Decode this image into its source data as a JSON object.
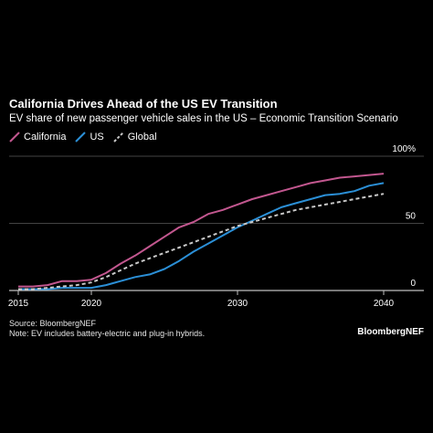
{
  "title": "California Drives Ahead of the US EV Transition",
  "subtitle": "EV share of new passenger vehicle sales in the US – Economic Transition Scenario",
  "colors": {
    "background": "#000000",
    "california": "#c2578f",
    "us": "#2b8fd6",
    "global": "#c8c8c8",
    "grid": "#5a5a5a"
  },
  "footer": {
    "source": "Source: BloombergNEF",
    "note": "Note: EV includes battery-electric and plug-in hybrids.",
    "brand": "BloombergNEF"
  },
  "chart_data": {
    "type": "line",
    "title": "California Drives Ahead of the US EV Transition",
    "subtitle": "EV share of new passenger vehicle sales in the US – Economic Transition Scenario",
    "xlabel": "",
    "ylabel": "",
    "xlim": [
      2015,
      2040
    ],
    "ylim": [
      0,
      100
    ],
    "x_ticks": [
      "2015",
      "2020",
      "2030",
      "2040"
    ],
    "y_ticks": [
      "0",
      "50",
      "100%"
    ],
    "y_tick_values": [
      0,
      50,
      100
    ],
    "legend_position": "top-left",
    "x": [
      2015,
      2016,
      2017,
      2018,
      2019,
      2020,
      2021,
      2022,
      2023,
      2024,
      2025,
      2026,
      2027,
      2028,
      2029,
      2030,
      2031,
      2032,
      2033,
      2034,
      2035,
      2036,
      2037,
      2038,
      2039,
      2040
    ],
    "series": [
      {
        "name": "California",
        "color": "#c2578f",
        "dash": false,
        "values": [
          3,
          3,
          4,
          7,
          7,
          8,
          13,
          20,
          26,
          33,
          40,
          47,
          51,
          57,
          60,
          64,
          68,
          71,
          74,
          77,
          80,
          82,
          84,
          85,
          86,
          87
        ]
      },
      {
        "name": "US",
        "color": "#2b8fd6",
        "dash": false,
        "values": [
          1,
          1,
          1,
          2,
          2,
          2,
          4,
          7,
          10,
          12,
          16,
          22,
          29,
          35,
          41,
          47,
          52,
          57,
          62,
          65,
          68,
          71,
          72,
          74,
          78,
          80
        ]
      },
      {
        "name": "Global",
        "color": "#c8c8c8",
        "dash": true,
        "values": [
          1,
          1,
          2,
          3,
          4,
          6,
          10,
          15,
          20,
          24,
          28,
          32,
          36,
          40,
          44,
          48,
          51,
          54,
          57,
          60,
          62,
          64,
          66,
          68,
          70,
          72
        ]
      }
    ]
  }
}
